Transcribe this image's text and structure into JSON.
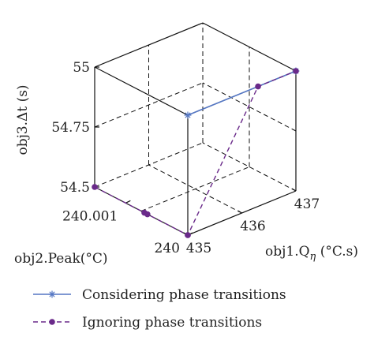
{
  "chart_data": {
    "type": "scatter",
    "projection": "3d",
    "axes": {
      "x": {
        "label_prefix": "obj1.Q",
        "label_subscript": "η",
        "label_suffix": " (°C.s)",
        "ticks": [
          "435",
          "436",
          "437"
        ],
        "range": [
          435,
          437
        ]
      },
      "y": {
        "label": "obj2.Peak(°C)",
        "ticks": [
          "240",
          "240.001"
        ],
        "range": [
          240,
          240.0015
        ]
      },
      "z": {
        "label": "obj3.Δt (s)",
        "ticks": [
          "54.5",
          "54.75",
          "55"
        ],
        "range": [
          54.5,
          55
        ]
      }
    },
    "grid": true,
    "legend_position": "bottom",
    "series": [
      {
        "name": "Considering phase transitions",
        "color": "#5577c4",
        "marker": "asterisk",
        "line": "solid",
        "points": [
          {
            "x": 435.0,
            "y": 240.0,
            "z": 55.0
          },
          {
            "x": 437.0,
            "y": 240.0,
            "z": 55.0
          }
        ]
      },
      {
        "name": "Ignoring phase transitions",
        "color": "#6a2a8a",
        "marker": "dot",
        "line": "dashed",
        "points": [
          {
            "x": 435.0,
            "y": 240.0015,
            "z": 54.5
          },
          {
            "x": 435.0,
            "y": 240.0007,
            "z": 54.5
          },
          {
            "x": 435.0,
            "y": 240.00065,
            "z": 54.5
          },
          {
            "x": 435.0,
            "y": 240.0,
            "z": 54.5
          },
          {
            "x": 435.0,
            "y": 240.0,
            "z": 54.5
          },
          {
            "x": 436.3,
            "y": 240.0,
            "z": 55.0
          },
          {
            "x": 437.0,
            "y": 240.0,
            "z": 55.0
          }
        ]
      }
    ]
  }
}
